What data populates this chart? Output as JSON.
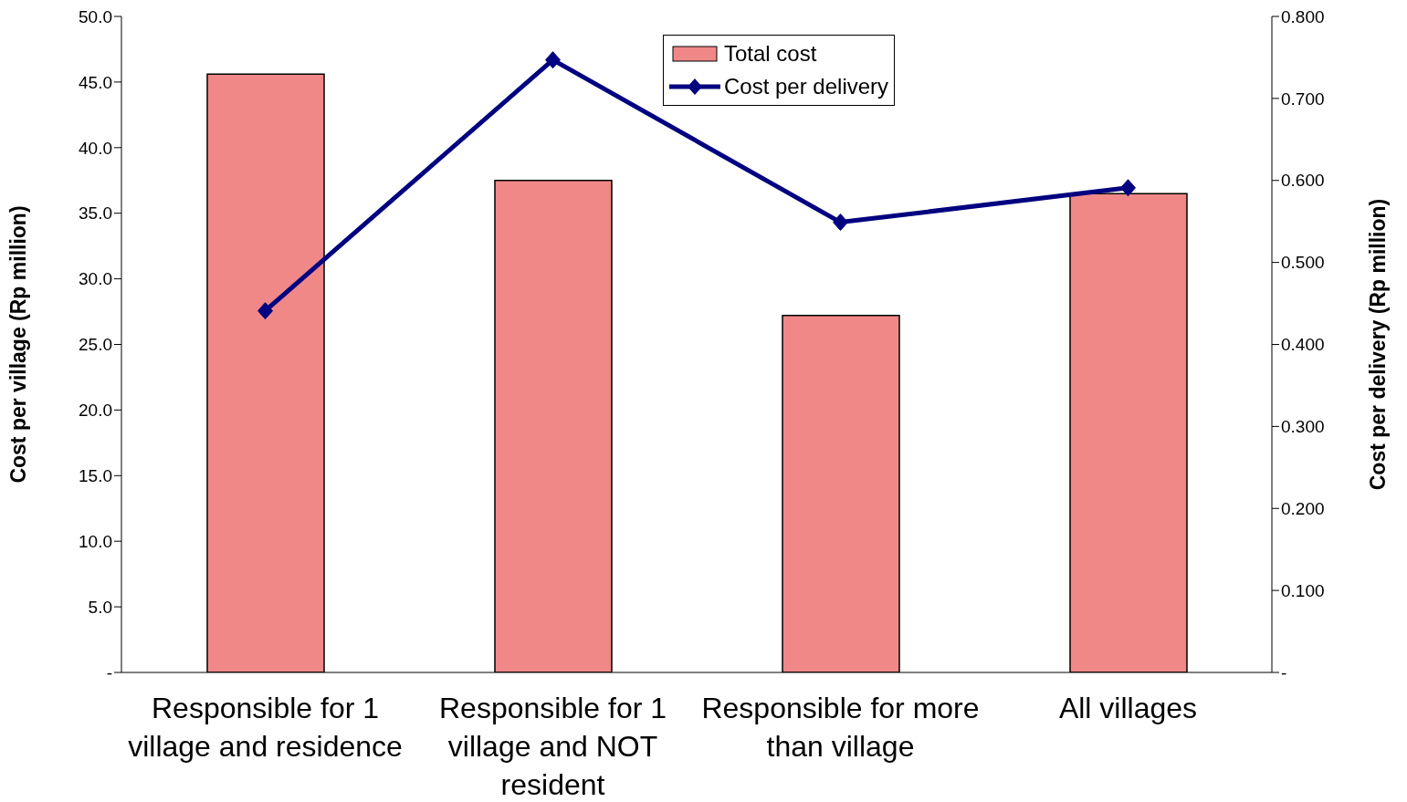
{
  "chart_data": {
    "type": "bar",
    "categories": [
      "Responsible for 1 village and residence",
      "Responsible for 1 village and NOT resident",
      "Responsible for more than village",
      "All villages"
    ],
    "series": [
      {
        "name": "Total cost",
        "color": "#f08888",
        "values": [
          45.6,
          37.5,
          27.2,
          36.5
        ]
      },
      {
        "name": "Cost per delivery",
        "type": "line",
        "axis": "y2",
        "color": "#000080",
        "values": [
          0.441,
          0.747,
          0.549,
          0.591
        ]
      }
    ],
    "ylabel": "Cost per village (Rp million)",
    "y2label": "Cost per delivery (Rp million)",
    "ylim": [
      0,
      50
    ],
    "yticks": [
      {
        "value": 0,
        "label": "-"
      },
      {
        "value": 5,
        "label": "5.0"
      },
      {
        "value": 10,
        "label": "10.0"
      },
      {
        "value": 15,
        "label": "15.0"
      },
      {
        "value": 20,
        "label": "20.0"
      },
      {
        "value": 25,
        "label": "25.0"
      },
      {
        "value": 30,
        "label": "30.0"
      },
      {
        "value": 35,
        "label": "35.0"
      },
      {
        "value": 40,
        "label": "40.0"
      },
      {
        "value": 45,
        "label": "45.0"
      },
      {
        "value": 50,
        "label": "50.0"
      }
    ],
    "y2lim": [
      0,
      0.8
    ],
    "y2ticks": [
      {
        "value": 0,
        "label": "-"
      },
      {
        "value": 0.1,
        "label": "0.100"
      },
      {
        "value": 0.2,
        "label": "0.200"
      },
      {
        "value": 0.3,
        "label": "0.300"
      },
      {
        "value": 0.4,
        "label": "0.400"
      },
      {
        "value": 0.5,
        "label": "0.500"
      },
      {
        "value": 0.6,
        "label": "0.600"
      },
      {
        "value": 0.7,
        "label": "0.700"
      },
      {
        "value": 0.8,
        "label": "0.800"
      }
    ],
    "legend": "top",
    "marker": "diamond",
    "line_style": "solid",
    "grid": false
  }
}
